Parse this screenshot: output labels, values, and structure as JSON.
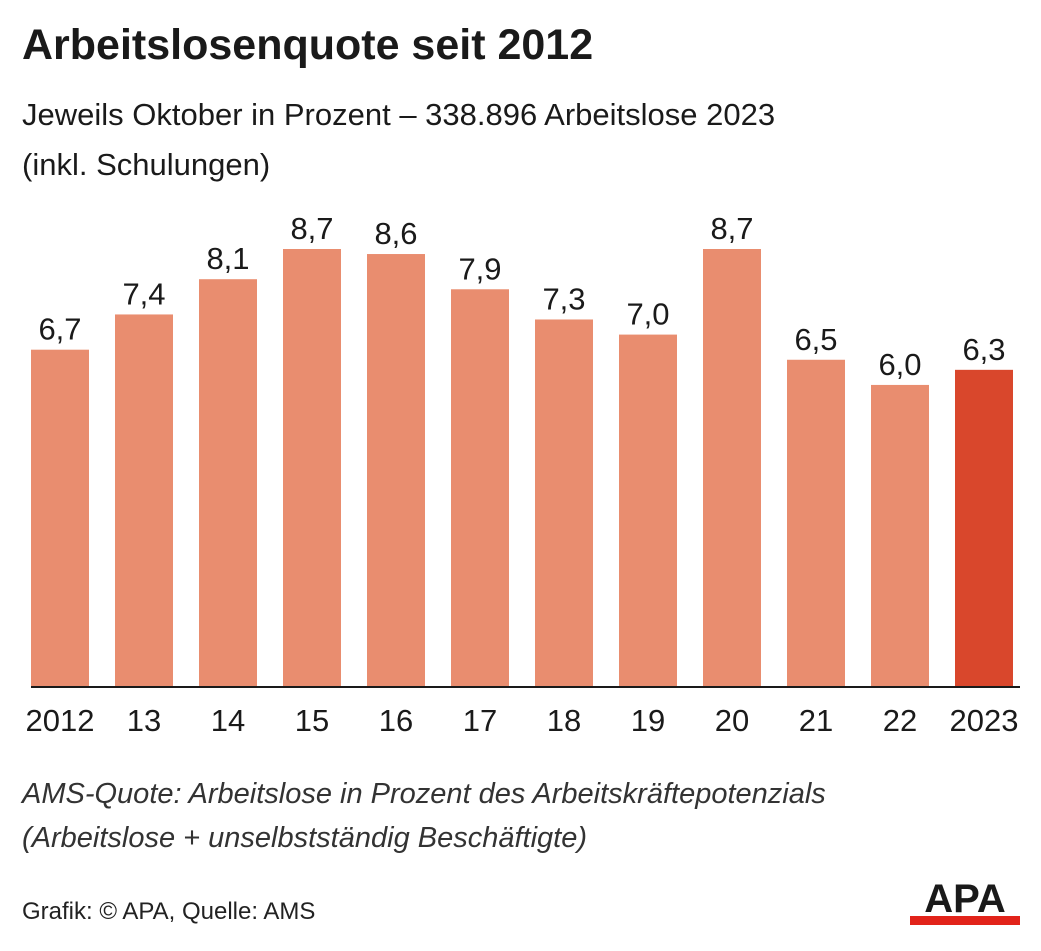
{
  "header": {
    "title": "Arbeitslosenquote seit 2012",
    "subtitle_line1": "Jeweils Oktober in Prozent – 338.896 Arbeitslose 2023",
    "subtitle_line2": "(inkl. Schulungen)"
  },
  "footer": {
    "note_line1": "AMS-Quote: Arbeitslose in Prozent des Arbeitskräftepotenzials",
    "note_line2": "(Arbeitslose + unselbstständig Beschäftigte)",
    "source": "Grafik: © APA, Quelle: AMS",
    "logo_text": "APA"
  },
  "colors": {
    "bar": "#E98D6F",
    "highlight": "#D9472C",
    "axis": "#1a1a1a",
    "logo_red": "#E2231A"
  },
  "chart_data": {
    "type": "bar",
    "categories": [
      "2012",
      "13",
      "14",
      "15",
      "16",
      "17",
      "18",
      "19",
      "20",
      "21",
      "22",
      "2023"
    ],
    "values": [
      6.7,
      7.4,
      8.1,
      8.7,
      8.6,
      7.9,
      7.3,
      7.0,
      8.7,
      6.5,
      6.0,
      6.3
    ],
    "value_labels": [
      "6,7",
      "7,4",
      "8,1",
      "8,7",
      "8,6",
      "7,9",
      "7,3",
      "7,0",
      "8,7",
      "6,5",
      "6,0",
      "6,3"
    ],
    "highlight_index": 11,
    "title": "Arbeitslosenquote seit 2012",
    "xlabel": "",
    "ylabel": "",
    "ylim": [
      0,
      8.7
    ],
    "grid": false,
    "legend": "none"
  }
}
